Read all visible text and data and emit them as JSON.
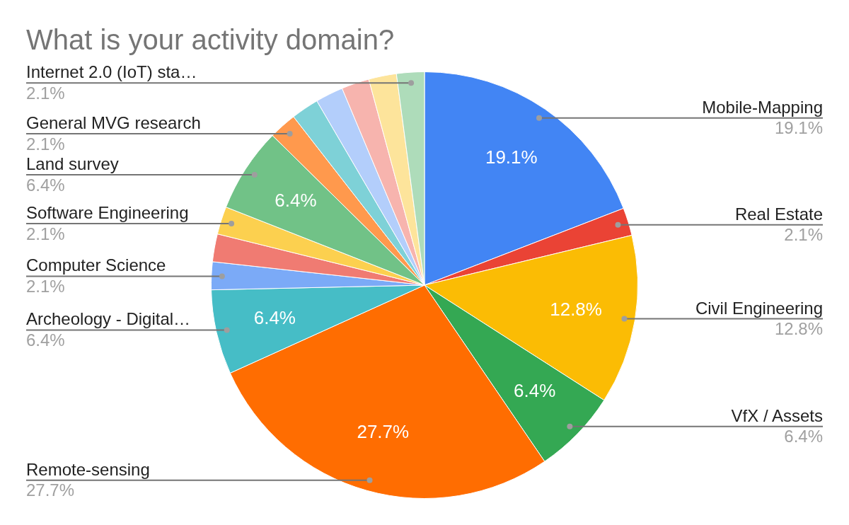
{
  "chart_data": {
    "type": "pie",
    "title": "What is your activity domain?",
    "categories": [
      "Mobile-Mapping",
      "Real Estate",
      "Civil Engineering",
      "VfX / Assets",
      "Remote-sensing",
      "Archeology - Digital…",
      "Computer Science",
      null,
      "Software Engineering",
      "Land survey",
      "General MVG research",
      null,
      null,
      null,
      null,
      "Internet 2.0 (IoT) sta…"
    ],
    "values": [
      19.1,
      2.1,
      12.8,
      6.4,
      27.7,
      6.4,
      2.1,
      2.1,
      2.1,
      6.4,
      2.1,
      2.1,
      2.1,
      2.1,
      2.1,
      2.1
    ],
    "value_labels": [
      "19.1%",
      "2.1%",
      "12.8%",
      "6.4%",
      "27.7%",
      "6.4%",
      "2.1%",
      null,
      "2.1%",
      "6.4%",
      "2.1%",
      null,
      null,
      null,
      null,
      "2.1%"
    ],
    "colors": [
      "#4285f4",
      "#ea4335",
      "#fbbc04",
      "#34a853",
      "#ff6d01",
      "#46bdc6",
      "#7baaf7",
      "#f07b72",
      "#fcd04f",
      "#71c287",
      "#ff994d",
      "#7ed1d7",
      "#b3cefb",
      "#f7b4ae",
      "#fde49b",
      "#aedcba"
    ],
    "legend": false
  }
}
